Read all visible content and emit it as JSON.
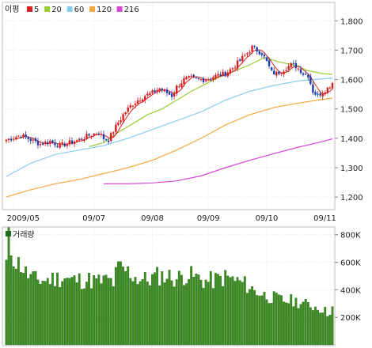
{
  "chart_data": [
    {
      "type": "candlestick",
      "legend": {
        "label": "이평",
        "entries": [
          {
            "name": "5",
            "color": "#d81e1e"
          },
          {
            "name": "20",
            "color": "#9acd32"
          },
          {
            "name": "60",
            "color": "#87ceeb"
          },
          {
            "name": "120",
            "color": "#f4a640"
          },
          {
            "name": "216",
            "color": "#d845d8"
          }
        ]
      },
      "x_tick_labels": [
        "2009/05",
        "09/07",
        "09/08",
        "09/09",
        "09/10",
        "09/11"
      ],
      "y_tick_labels": [
        "1,800",
        "1,700",
        "1,600",
        "1,500",
        "1,400",
        "1,300",
        "1,200"
      ],
      "ylim": [
        1160,
        1860
      ],
      "up_color": "#d81e1e",
      "down_color": "#1c3fa8",
      "close_anchors": [
        [
          0,
          1395
        ],
        [
          6,
          1410
        ],
        [
          10,
          1395
        ],
        [
          14,
          1380
        ],
        [
          18,
          1390
        ],
        [
          22,
          1375
        ],
        [
          26,
          1385
        ],
        [
          30,
          1395
        ],
        [
          34,
          1410
        ],
        [
          38,
          1420
        ],
        [
          40,
          1400
        ],
        [
          42,
          1395
        ],
        [
          45,
          1440
        ],
        [
          48,
          1480
        ],
        [
          51,
          1510
        ],
        [
          54,
          1530
        ],
        [
          57,
          1545
        ],
        [
          60,
          1555
        ],
        [
          63,
          1570
        ],
        [
          66,
          1555
        ],
        [
          68,
          1545
        ],
        [
          70,
          1575
        ],
        [
          73,
          1600
        ],
        [
          76,
          1605
        ],
        [
          79,
          1600
        ],
        [
          82,
          1600
        ],
        [
          85,
          1610
        ],
        [
          87,
          1615
        ],
        [
          90,
          1620
        ],
        [
          93,
          1640
        ],
        [
          96,
          1665
        ],
        [
          99,
          1690
        ],
        [
          101,
          1710
        ],
        [
          103,
          1700
        ],
        [
          105,
          1690
        ],
        [
          107,
          1660
        ],
        [
          109,
          1625
        ],
        [
          111,
          1620
        ],
        [
          113,
          1630
        ],
        [
          115,
          1640
        ],
        [
          117,
          1650
        ],
        [
          119,
          1645
        ],
        [
          121,
          1630
        ],
        [
          122,
          1620
        ],
        [
          124,
          1615
        ],
        [
          126,
          1560
        ],
        [
          128,
          1545
        ],
        [
          130,
          1560
        ],
        [
          132,
          1570
        ],
        [
          134,
          1590
        ]
      ],
      "ma_series": [
        {
          "name": "20",
          "color": "#9acd32",
          "points": [
            [
              34,
              1372
            ],
            [
              40,
              1385
            ],
            [
              46,
              1420
            ],
            [
              52,
              1450
            ],
            [
              58,
              1480
            ],
            [
              64,
              1500
            ],
            [
              70,
              1530
            ],
            [
              76,
              1560
            ],
            [
              82,
              1585
            ],
            [
              88,
              1610
            ],
            [
              94,
              1630
            ],
            [
              100,
              1650
            ],
            [
              106,
              1675
            ],
            [
              112,
              1660
            ],
            [
              118,
              1650
            ],
            [
              124,
              1630
            ],
            [
              130,
              1620
            ],
            [
              134,
              1618
            ]
          ]
        },
        {
          "name": "60",
          "color": "#87ceeb",
          "points": [
            [
              0,
              1270
            ],
            [
              10,
              1315
            ],
            [
              20,
              1345
            ],
            [
              30,
              1360
            ],
            [
              40,
              1375
            ],
            [
              50,
              1400
            ],
            [
              60,
              1430
            ],
            [
              70,
              1460
            ],
            [
              80,
              1490
            ],
            [
              90,
              1530
            ],
            [
              100,
              1560
            ],
            [
              110,
              1580
            ],
            [
              120,
              1595
            ],
            [
              126,
              1600
            ],
            [
              134,
              1605
            ]
          ]
        },
        {
          "name": "120",
          "color": "#f4a640",
          "points": [
            [
              0,
              1200
            ],
            [
              10,
              1225
            ],
            [
              20,
              1245
            ],
            [
              30,
              1260
            ],
            [
              40,
              1280
            ],
            [
              50,
              1300
            ],
            [
              60,
              1325
            ],
            [
              70,
              1360
            ],
            [
              80,
              1400
            ],
            [
              90,
              1445
            ],
            [
              100,
              1480
            ],
            [
              110,
              1505
            ],
            [
              120,
              1520
            ],
            [
              128,
              1530
            ],
            [
              134,
              1537
            ]
          ]
        },
        {
          "name": "216",
          "color": "#d845d8",
          "points": [
            [
              40,
              1245
            ],
            [
              50,
              1245
            ],
            [
              60,
              1248
            ],
            [
              70,
              1255
            ],
            [
              80,
              1272
            ],
            [
              90,
              1300
            ],
            [
              100,
              1325
            ],
            [
              110,
              1348
            ],
            [
              120,
              1370
            ],
            [
              128,
              1385
            ],
            [
              134,
              1398
            ]
          ]
        }
      ]
    },
    {
      "type": "bar",
      "title": "거래량",
      "color": "#3a8c1e",
      "y_tick_labels": [
        "800K",
        "600K",
        "400K",
        "200K"
      ],
      "ylim": [
        0,
        850
      ],
      "volume_anchors": [
        [
          0,
          590
        ],
        [
          1,
          760
        ],
        [
          2,
          690
        ],
        [
          4,
          600
        ],
        [
          6,
          580
        ],
        [
          8,
          520
        ],
        [
          12,
          470
        ],
        [
          16,
          470
        ],
        [
          20,
          480
        ],
        [
          24,
          490
        ],
        [
          26,
          470
        ],
        [
          30,
          470
        ],
        [
          34,
          470
        ],
        [
          38,
          460
        ],
        [
          42,
          470
        ],
        [
          44,
          450
        ],
        [
          46,
          560
        ],
        [
          50,
          530
        ],
        [
          54,
          480
        ],
        [
          58,
          470
        ],
        [
          62,
          500
        ],
        [
          66,
          500
        ],
        [
          70,
          480
        ],
        [
          74,
          510
        ],
        [
          78,
          490
        ],
        [
          82,
          460
        ],
        [
          86,
          470
        ],
        [
          90,
          490
        ],
        [
          94,
          470
        ],
        [
          98,
          440
        ],
        [
          100,
          420
        ],
        [
          102,
          390
        ],
        [
          104,
          380
        ],
        [
          106,
          360
        ],
        [
          110,
          340
        ],
        [
          114,
          320
        ],
        [
          118,
          320
        ],
        [
          122,
          300
        ],
        [
          126,
          280
        ],
        [
          130,
          260
        ],
        [
          132,
          230
        ],
        [
          133,
          250
        ],
        [
          134,
          270
        ]
      ]
    }
  ]
}
